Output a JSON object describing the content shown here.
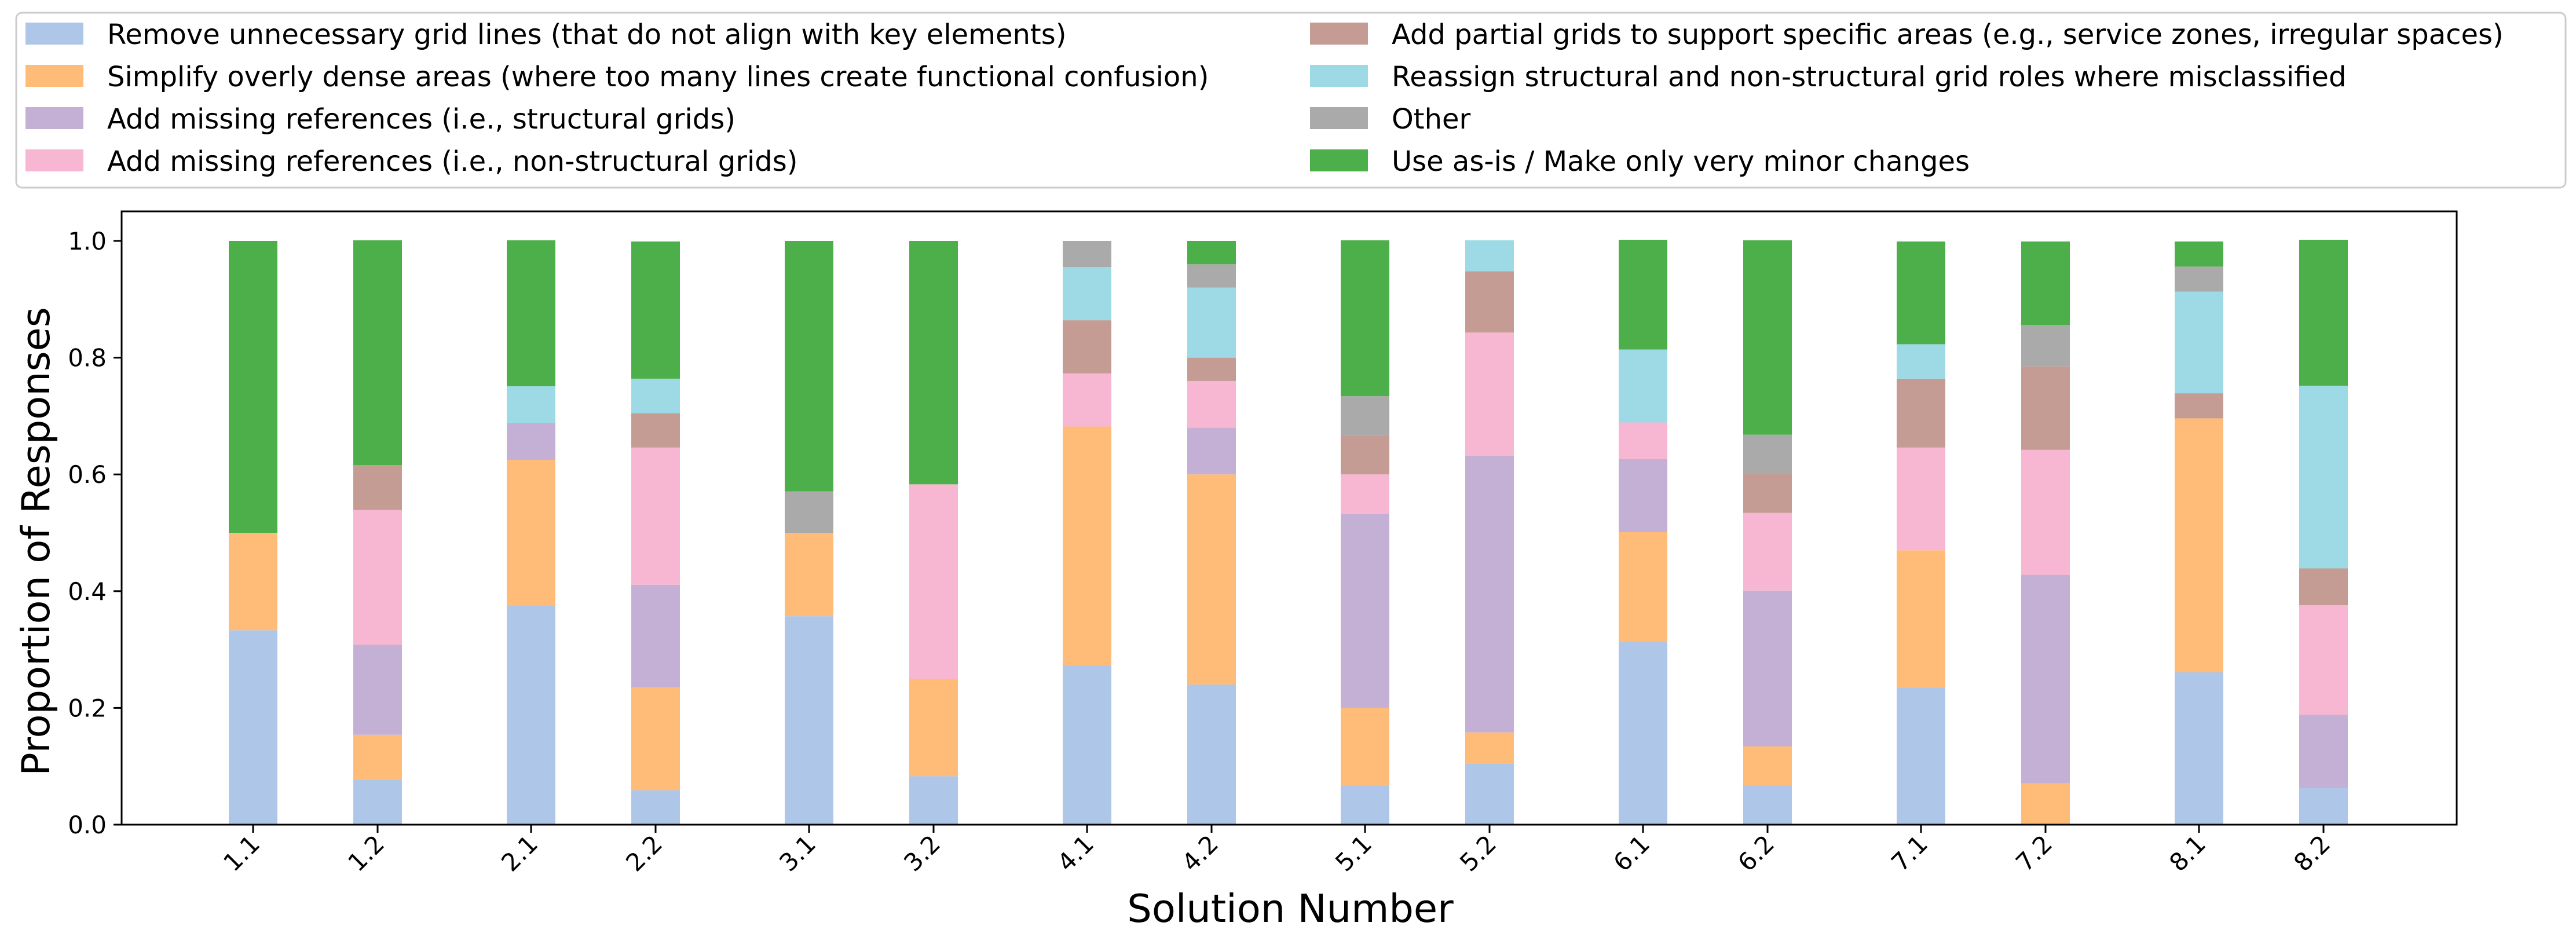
{
  "chart_data": {
    "type": "bar",
    "stacked": true,
    "xlabel": "Solution Number",
    "ylabel": "Proportion of Responses",
    "ylim": [
      0,
      1.0
    ],
    "yticks": [
      "0.0",
      "0.2",
      "0.4",
      "0.6",
      "0.8",
      "1.0"
    ],
    "ytick_values": [
      0,
      0.2,
      0.4,
      0.6,
      0.8,
      1.0
    ],
    "grid": false,
    "legend_position": "top",
    "categories": [
      "1.1",
      "1.2",
      "2.1",
      "2.2",
      "3.1",
      "3.2",
      "4.1",
      "4.2",
      "5.1",
      "5.2",
      "6.1",
      "6.2",
      "7.1",
      "7.2",
      "8.1",
      "8.2"
    ],
    "series": [
      {
        "name": "Remove unnecessary grid lines (that do not align with key elements)",
        "color": "#aec7e8",
        "values": [
          0.333,
          0.077,
          0.375,
          0.059,
          0.357,
          0.083,
          0.273,
          0.24,
          0.067,
          0.105,
          0.313,
          0.067,
          0.235,
          0.0,
          0.261,
          0.063
        ]
      },
      {
        "name": "Simplify overly dense areas (where too many lines create functional confusion)",
        "color": "#ffbb78",
        "values": [
          0.167,
          0.077,
          0.25,
          0.176,
          0.143,
          0.167,
          0.409,
          0.36,
          0.133,
          0.053,
          0.188,
          0.067,
          0.235,
          0.071,
          0.435,
          0.0
        ]
      },
      {
        "name": "Add missing references (i.e., structural grids)",
        "color": "#c5b0d5",
        "values": [
          0.0,
          0.154,
          0.063,
          0.176,
          0.0,
          0.0,
          0.0,
          0.08,
          0.333,
          0.474,
          0.125,
          0.267,
          0.0,
          0.357,
          0.0,
          0.125
        ]
      },
      {
        "name": "Add missing references (i.e., non-structural grids)",
        "color": "#f7b6d2",
        "values": [
          0.0,
          0.231,
          0.0,
          0.235,
          0.0,
          0.333,
          0.091,
          0.08,
          0.067,
          0.211,
          0.063,
          0.133,
          0.176,
          0.214,
          0.0,
          0.188
        ]
      },
      {
        "name": "Add partial grids to support specific areas (e.g., service zones, irregular spaces)",
        "color": "#c49c94",
        "values": [
          0.0,
          0.077,
          0.0,
          0.059,
          0.0,
          0.0,
          0.091,
          0.04,
          0.067,
          0.105,
          0.0,
          0.067,
          0.118,
          0.143,
          0.043,
          0.063
        ]
      },
      {
        "name": "Reassign structural and non-structural grid roles where misclassified",
        "color": "#9edae5",
        "values": [
          0.0,
          0.0,
          0.063,
          0.059,
          0.0,
          0.0,
          0.091,
          0.12,
          0.0,
          0.053,
          0.125,
          0.0,
          0.059,
          0.0,
          0.174,
          0.313
        ]
      },
      {
        "name": "Other",
        "color": "#aaaaaa",
        "values": [
          0.0,
          0.0,
          0.0,
          0.0,
          0.071,
          0.0,
          0.045,
          0.04,
          0.067,
          0.0,
          0.0,
          0.067,
          0.0,
          0.071,
          0.043,
          0.0
        ]
      },
      {
        "name": "Use as-is / Make only very minor changes",
        "color": "#4daf4a",
        "values": [
          0.5,
          0.385,
          0.25,
          0.235,
          0.429,
          0.417,
          0.0,
          0.04,
          0.267,
          0.0,
          0.188,
          0.333,
          0.176,
          0.143,
          0.043,
          0.25
        ]
      }
    ]
  }
}
